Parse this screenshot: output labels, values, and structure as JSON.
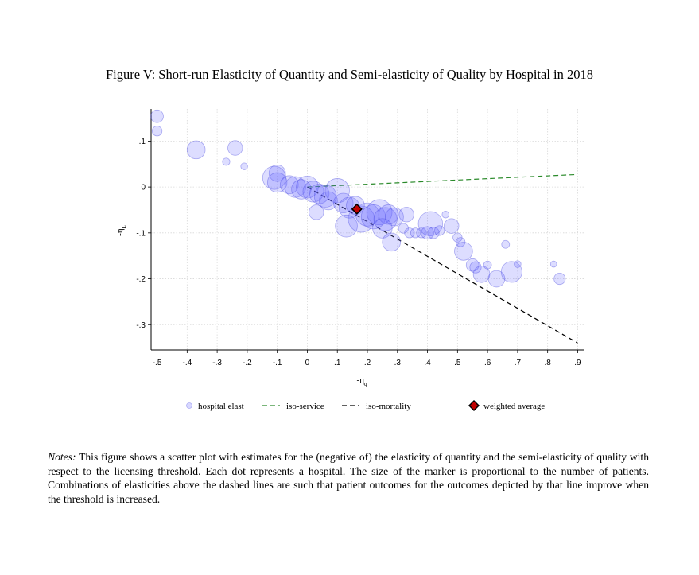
{
  "figure": {
    "title": "Figure V: Short-run Elasticity of Quantity and Semi-elasticity of Quality by Hospital in 2018",
    "notes_label": "Notes:",
    "notes_text": "This figure shows a scatter plot with estimates for the (negative of) the elasticity of quantity and the semi-elasticity of quality with respect to the licensing threshold. Each dot represents a hospital. The size of the marker is proportional to the number of patients. Combinations of elasticities above the dashed lines are such that patient outcomes for the outcomes depicted by that line improve when the threshold is increased."
  },
  "chart_data": {
    "type": "scatter",
    "title": "",
    "xlabel": "-η",
    "xlabel_sub": "q",
    "ylabel": "-η",
    "ylabel_sub": "L",
    "xlim": [
      -0.52,
      0.92
    ],
    "ylim": [
      -0.355,
      0.17
    ],
    "x_ticks": [
      -0.5,
      -0.4,
      -0.3,
      -0.2,
      -0.1,
      0,
      0.1,
      0.2,
      0.3,
      0.4,
      0.5,
      0.6,
      0.7,
      0.8,
      0.9
    ],
    "x_tick_labels": [
      "-.5",
      "-.4",
      "-.3",
      "-.2",
      "-.1",
      "0",
      ".1",
      ".2",
      ".3",
      ".4",
      ".5",
      ".6",
      ".7",
      ".8",
      ".9"
    ],
    "y_ticks": [
      0.1,
      0,
      -0.1,
      -0.2,
      -0.3
    ],
    "y_tick_labels": [
      ".1",
      "0",
      "-.1",
      "-.2",
      "-.3"
    ],
    "grid": true,
    "legend_position": "bottom",
    "colors": {
      "points_fill": "#6464ff",
      "points_stroke": "#5050e0",
      "iso_service": "#2a8a2a",
      "iso_mortality": "#000000",
      "weighted_average_fill": "#c00000",
      "weighted_average_stroke": "#000000"
    },
    "series": [
      {
        "name": "hospital elast",
        "kind": "points",
        "points": [
          {
            "x": -0.5,
            "y": 0.154,
            "n": 2
          },
          {
            "x": -0.5,
            "y": 0.122,
            "n": 1
          },
          {
            "x": -0.37,
            "y": 0.081,
            "n": 5
          },
          {
            "x": -0.24,
            "y": 0.085,
            "n": 3
          },
          {
            "x": -0.27,
            "y": 0.055,
            "n": 0.4
          },
          {
            "x": -0.21,
            "y": 0.045,
            "n": 0.3
          },
          {
            "x": -0.1,
            "y": 0.03,
            "n": 4
          },
          {
            "x": -0.11,
            "y": 0.02,
            "n": 9
          },
          {
            "x": -0.1,
            "y": 0.01,
            "n": 6
          },
          {
            "x": -0.06,
            "y": 0.005,
            "n": 5
          },
          {
            "x": -0.04,
            "y": 0.0,
            "n": 7
          },
          {
            "x": -0.02,
            "y": -0.005,
            "n": 6
          },
          {
            "x": 0.0,
            "y": 0.0,
            "n": 8
          },
          {
            "x": 0.02,
            "y": -0.01,
            "n": 7
          },
          {
            "x": 0.04,
            "y": -0.015,
            "n": 6
          },
          {
            "x": 0.06,
            "y": -0.02,
            "n": 8
          },
          {
            "x": 0.07,
            "y": -0.03,
            "n": 5
          },
          {
            "x": 0.1,
            "y": -0.008,
            "n": 10
          },
          {
            "x": 0.03,
            "y": -0.055,
            "n": 3
          },
          {
            "x": 0.12,
            "y": -0.035,
            "n": 6
          },
          {
            "x": 0.14,
            "y": -0.045,
            "n": 7
          },
          {
            "x": 0.16,
            "y": -0.04,
            "n": 5
          },
          {
            "x": 0.13,
            "y": -0.085,
            "n": 8
          },
          {
            "x": 0.18,
            "y": -0.07,
            "n": 12
          },
          {
            "x": 0.2,
            "y": -0.06,
            "n": 9
          },
          {
            "x": 0.22,
            "y": -0.065,
            "n": 10
          },
          {
            "x": 0.24,
            "y": -0.055,
            "n": 11
          },
          {
            "x": 0.26,
            "y": -0.07,
            "n": 9
          },
          {
            "x": 0.27,
            "y": -0.06,
            "n": 6
          },
          {
            "x": 0.29,
            "y": -0.065,
            "n": 5
          },
          {
            "x": 0.25,
            "y": -0.09,
            "n": 6
          },
          {
            "x": 0.28,
            "y": -0.12,
            "n": 5
          },
          {
            "x": 0.33,
            "y": -0.06,
            "n": 3
          },
          {
            "x": 0.32,
            "y": -0.09,
            "n": 1
          },
          {
            "x": 0.34,
            "y": -0.1,
            "n": 1
          },
          {
            "x": 0.36,
            "y": -0.1,
            "n": 1
          },
          {
            "x": 0.38,
            "y": -0.1,
            "n": 1
          },
          {
            "x": 0.41,
            "y": -0.08,
            "n": 10
          },
          {
            "x": 0.4,
            "y": -0.1,
            "n": 2
          },
          {
            "x": 0.42,
            "y": -0.1,
            "n": 1.5
          },
          {
            "x": 0.44,
            "y": -0.095,
            "n": 1
          },
          {
            "x": 0.46,
            "y": -0.06,
            "n": 0.3
          },
          {
            "x": 0.48,
            "y": -0.085,
            "n": 3
          },
          {
            "x": 0.5,
            "y": -0.11,
            "n": 0.8
          },
          {
            "x": 0.51,
            "y": -0.12,
            "n": 0.8
          },
          {
            "x": 0.52,
            "y": -0.14,
            "n": 5
          },
          {
            "x": 0.55,
            "y": -0.17,
            "n": 2
          },
          {
            "x": 0.56,
            "y": -0.175,
            "n": 1.5
          },
          {
            "x": 0.58,
            "y": -0.19,
            "n": 4
          },
          {
            "x": 0.6,
            "y": -0.17,
            "n": 0.5
          },
          {
            "x": 0.63,
            "y": -0.2,
            "n": 4
          },
          {
            "x": 0.66,
            "y": -0.125,
            "n": 0.5
          },
          {
            "x": 0.68,
            "y": -0.185,
            "n": 7
          },
          {
            "x": 0.7,
            "y": -0.168,
            "n": 0.3
          },
          {
            "x": 0.82,
            "y": -0.168,
            "n": 0.2
          },
          {
            "x": 0.84,
            "y": -0.2,
            "n": 1.5
          }
        ]
      },
      {
        "name": "iso-service",
        "kind": "line",
        "style": "dashed",
        "points": [
          {
            "x": 0.0,
            "y": 0.0
          },
          {
            "x": 0.89,
            "y": 0.027
          }
        ]
      },
      {
        "name": "iso-mortality",
        "kind": "line",
        "style": "dashed",
        "points": [
          {
            "x": 0.0,
            "y": 0.0
          },
          {
            "x": 0.9,
            "y": -0.34
          }
        ]
      },
      {
        "name": "weighted average",
        "kind": "marker",
        "shape": "diamond",
        "points": [
          {
            "x": 0.165,
            "y": -0.048
          }
        ]
      }
    ]
  }
}
